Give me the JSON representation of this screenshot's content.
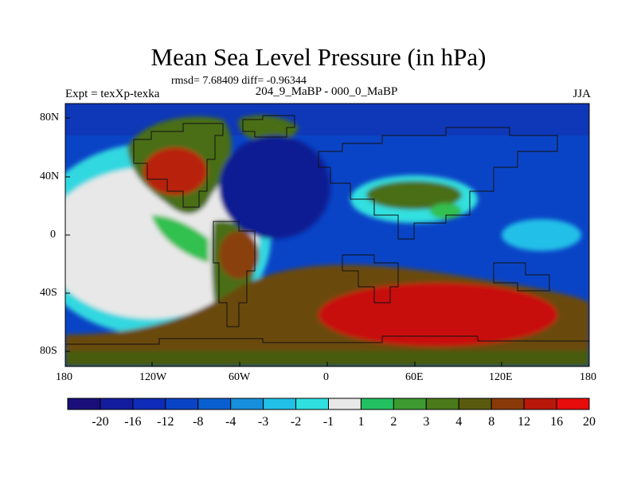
{
  "title": "Mean Sea Level Pressure (in hPa)",
  "stats_text": "rmsd= 7.68409 diff= -0.96344",
  "left_header": "Expt = texXp-texka",
  "center_header": "204_9_MaBP - 000_0_MaBP",
  "season": "JJA",
  "y_ticks": [
    "80N",
    "40N",
    "0",
    "40S",
    "80S"
  ],
  "x_ticks": [
    "180",
    "120W",
    "60W",
    "0",
    "60E",
    "120E",
    "180"
  ],
  "colorbar": {
    "labels": [
      "-20",
      "-16",
      "-12",
      "-8",
      "-4",
      "-3",
      "-2",
      "-1",
      "1",
      "2",
      "3",
      "4",
      "8",
      "12",
      "16",
      "20"
    ],
    "colors": [
      "#1a0f7a",
      "#141c9e",
      "#0e2cb8",
      "#0a44c6",
      "#0a5fd0",
      "#1690dc",
      "#20c0e8",
      "#30e0e0",
      "#e8e8e8",
      "#22c060",
      "#3c9a30",
      "#4a7a1a",
      "#5a5a0e",
      "#8a3a08",
      "#b8180a",
      "#e80c0c"
    ]
  },
  "colors": {
    "ocean_low": "#0a3ec0",
    "ocean_deep_low": "#0f1d92",
    "high_land": "#4a6e14",
    "high_extreme": "#c8100c",
    "neutral": "#e8e8e8"
  }
}
